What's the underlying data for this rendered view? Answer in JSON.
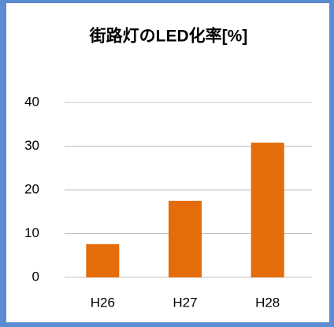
{
  "chart_data": {
    "type": "bar",
    "title": "街路灯のLED化率[%]",
    "categories": [
      "H26",
      "H27",
      "H28"
    ],
    "values": [
      7.6,
      17.5,
      30.8
    ],
    "color": "#e46c0a",
    "ylim": [
      0,
      40
    ],
    "yticks": [
      0,
      10,
      20,
      30,
      40
    ],
    "grid": true
  }
}
